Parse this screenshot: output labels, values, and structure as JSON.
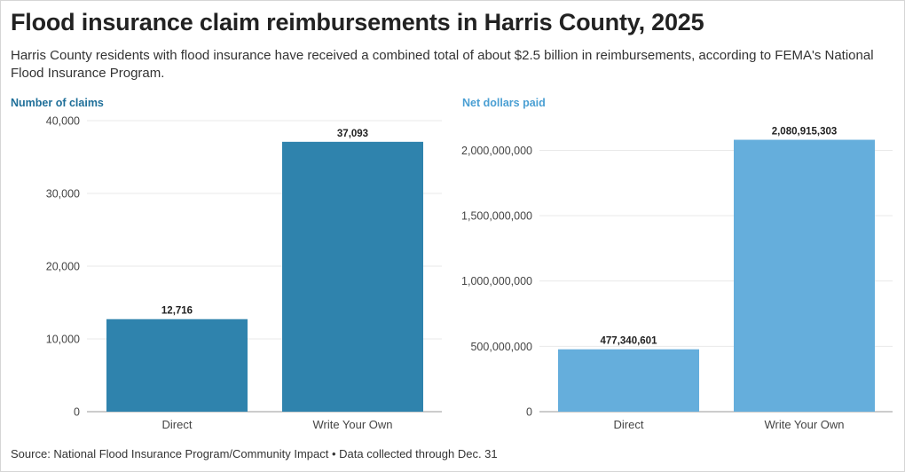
{
  "title": "Flood insurance claim reimbursements in Harris County, 2025",
  "subtitle": "Harris County residents with flood insurance have received a combined total of about $2.5 billion in reimbursements, according to FEMA's National Flood Insurance Program.",
  "source": "Source: National Flood Insurance Program/Community Impact • Data collected through Dec. 31",
  "chart_data": [
    {
      "type": "bar",
      "title": "Number of claims",
      "title_color": "#1f6f99",
      "bar_color": "#2f83ad",
      "categories": [
        "Direct",
        "Write Your Own"
      ],
      "values": [
        12716,
        37093
      ],
      "value_labels": [
        "12,716",
        "37,093"
      ],
      "ylim": [
        0,
        40000
      ],
      "yticks": [
        0,
        10000,
        20000,
        30000,
        40000
      ],
      "ytick_labels": [
        "0",
        "10,000",
        "20,000",
        "30,000",
        "40,000"
      ],
      "grid": true
    },
    {
      "type": "bar",
      "title": "Net dollars paid",
      "title_color": "#4a9fd3",
      "bar_color": "#65aedc",
      "categories": [
        "Direct",
        "Write Your Own"
      ],
      "values": [
        477340601,
        2080915303
      ],
      "value_labels": [
        "477,340,601",
        "2,080,915,303"
      ],
      "ylim": [
        0,
        2200000000
      ],
      "yticks": [
        0,
        500000000,
        1000000000,
        1500000000,
        2000000000
      ],
      "ytick_labels": [
        "0",
        "500,000,000",
        "1,000,000,000",
        "1,500,000,000",
        "2,000,000,000"
      ],
      "grid": true
    }
  ]
}
